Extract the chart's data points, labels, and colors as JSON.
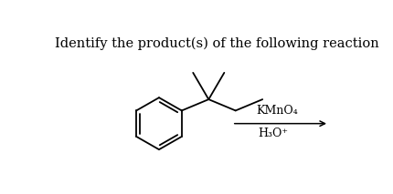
{
  "title": "Identify the product(s) of the following reaction",
  "title_fontsize": 10.5,
  "bg_color": "#ffffff",
  "text_color": "#000000",
  "line_color": "#000000",
  "line_width": 1.3,
  "reagent_above": "KMnO₄",
  "reagent_below": "H₃O⁺"
}
